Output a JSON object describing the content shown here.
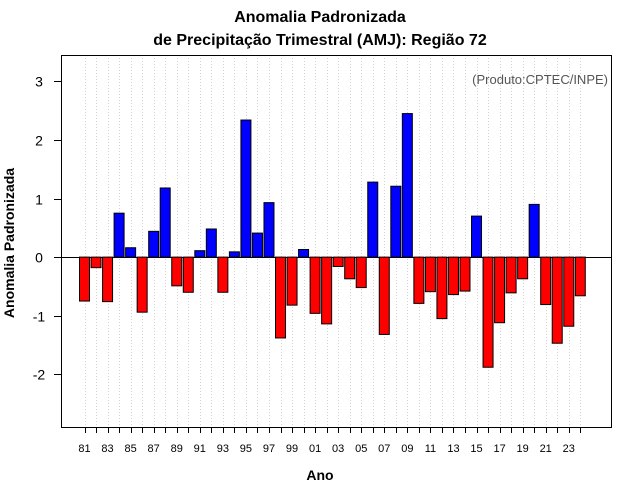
{
  "chart_data": {
    "type": "bar",
    "title": "Anomalia Padronizada",
    "subtitle": "de Precipitação Trimestral (AMJ): Região 72",
    "xlabel": "Ano",
    "ylabel": "Anomalia Padronizada",
    "annotation": "(Produto:CPTEC/INPE)",
    "ylim": [
      -2.9,
      3.45
    ],
    "yticks": [
      -2,
      -1,
      0,
      1,
      2,
      3
    ],
    "xtick_labels": [
      "81",
      "83",
      "85",
      "87",
      "89",
      "91",
      "93",
      "95",
      "97",
      "99",
      "01",
      "03",
      "05",
      "07",
      "09",
      "11",
      "13",
      "15",
      "17",
      "19",
      "21",
      "23"
    ],
    "grid": "vertical-dotted",
    "colors": {
      "positive": "#0000ff",
      "negative": "#ff0000",
      "axis": "#000000",
      "grid": "#d3d3d3"
    },
    "categories": [
      "81",
      "82",
      "83",
      "84",
      "85",
      "86",
      "87",
      "88",
      "89",
      "90",
      "91",
      "92",
      "93",
      "94",
      "95",
      "96",
      "97",
      "98",
      "99",
      "00",
      "01",
      "02",
      "03",
      "04",
      "05",
      "06",
      "07",
      "08",
      "09",
      "10",
      "11",
      "12",
      "13",
      "14",
      "15",
      "16",
      "17",
      "18",
      "19",
      "20",
      "21",
      "22",
      "23",
      "24"
    ],
    "values": [
      -0.75,
      -0.18,
      -0.76,
      0.75,
      0.16,
      -0.94,
      0.44,
      1.18,
      -0.49,
      -0.6,
      0.11,
      0.48,
      -0.6,
      0.09,
      2.34,
      0.41,
      0.93,
      -1.38,
      -0.82,
      0.13,
      -0.96,
      -1.14,
      -0.16,
      -0.37,
      -0.52,
      1.28,
      -1.32,
      1.21,
      2.45,
      -0.79,
      -0.59,
      -1.05,
      -0.64,
      -0.58,
      0.7,
      -1.88,
      -1.12,
      -0.61,
      -0.37,
      0.9,
      -0.81,
      -1.47,
      -1.18,
      -0.66
    ]
  }
}
